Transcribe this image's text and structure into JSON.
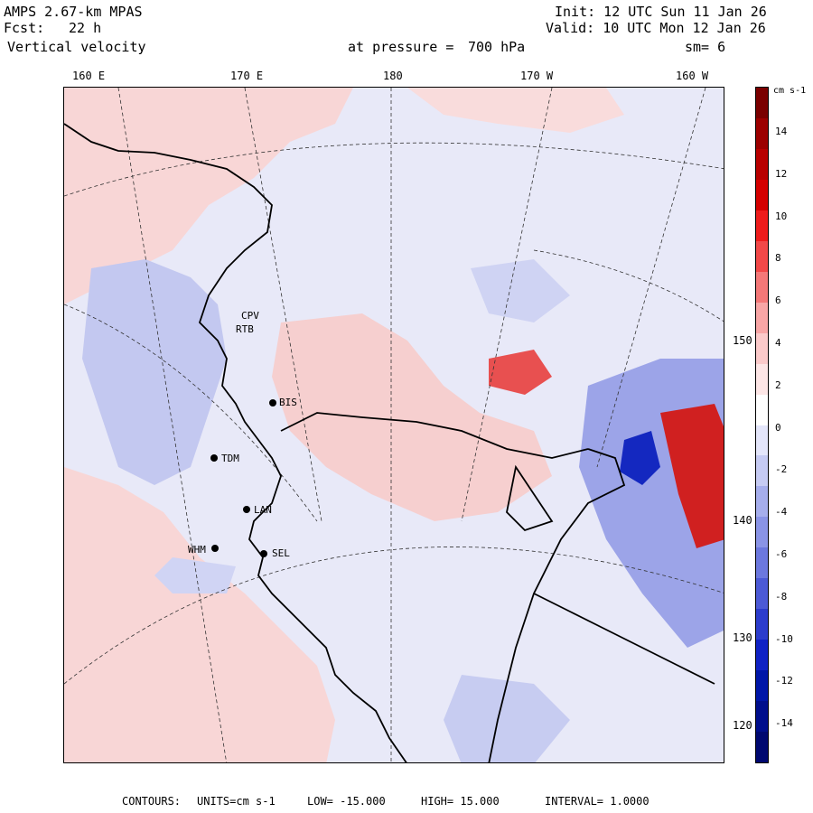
{
  "header": {
    "model": "AMPS 2.67-km MPAS",
    "fcst_label": "Fcst:",
    "fcst_value": "22 h",
    "field": "Vertical velocity",
    "pressure_label": "at pressure =",
    "pressure_value": "700 hPa",
    "init": "Init: 12 UTC Sun 11 Jan 26",
    "valid": "Valid: 10 UTC Mon 12 Jan 26",
    "smoothing": "sm= 6"
  },
  "longitude_labels": [
    "160 E",
    "170 E",
    "180",
    "170 W",
    "160 W"
  ],
  "latitude_labels": [
    "150 W",
    "140 W",
    "130 W",
    "120 W"
  ],
  "stations": [
    "CPV",
    "RTB",
    "BIS",
    "TDM",
    "LAN",
    "WHM",
    "SEL"
  ],
  "colorbar": {
    "units_label": "cm s-1",
    "ticks": [
      "14",
      "12",
      "10",
      "8",
      "6",
      "4",
      "2",
      "0",
      "-2",
      "-4",
      "-6",
      "-8",
      "-10",
      "-12",
      "-14"
    ],
    "colors": [
      "#7a0000",
      "#9c0000",
      "#b80000",
      "#d40000",
      "#ee1c1c",
      "#f24848",
      "#f47878",
      "#f8a6a6",
      "#fbcaca",
      "#fde6e6",
      "#ffffff",
      "#e4e6fa",
      "#c6cbf3",
      "#a6aeec",
      "#8a94e6",
      "#6c78de",
      "#4c5ad6",
      "#2c3ccc",
      "#1022c4",
      "#0016a8",
      "#000e8c",
      "#000870"
    ]
  },
  "footer": {
    "contours_label": "CONTOURS:",
    "units": "UNITS=cm s-1",
    "low": "LOW= -15.000",
    "high": "HIGH= 15.000",
    "interval": "INTERVAL= 1.0000"
  },
  "colors": {
    "updraft": "#f6c8c8",
    "downdraft": "#c3c8f0",
    "background": "#e8e9f8",
    "coast": "#000000"
  }
}
